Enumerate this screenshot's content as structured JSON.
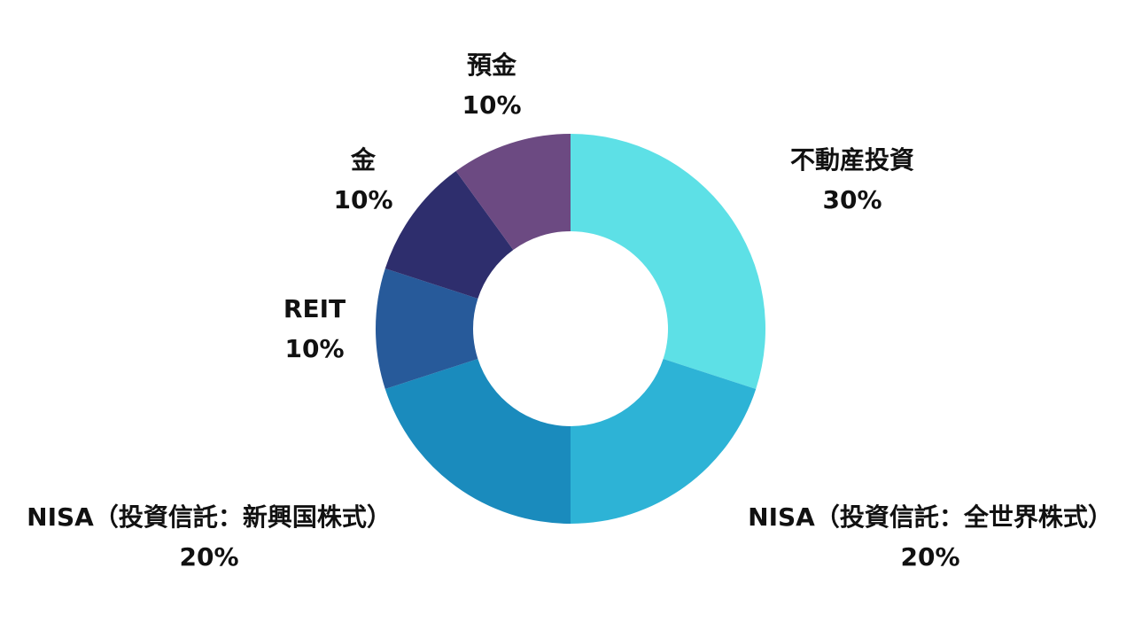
{
  "chart_data": {
    "type": "pie",
    "variant": "donut",
    "title": "",
    "legend": "none",
    "slices": [
      {
        "label": "不動産投資",
        "value": 30,
        "value_label": "30%",
        "color": "#5de0e6"
      },
      {
        "label": "NISA（投資信託：全世界株式）",
        "value": 20,
        "value_label": "20%",
        "color": "#2db3d6"
      },
      {
        "label": "NISA（投資信託：新興国株式）",
        "value": 20,
        "value_label": "20%",
        "color": "#1a8bbd"
      },
      {
        "label": "REIT",
        "value": 10,
        "value_label": "10%",
        "color": "#275a9a"
      },
      {
        "label": "金",
        "value": 10,
        "value_label": "10%",
        "color": "#2e2e6d"
      },
      {
        "label": "預金",
        "value": 10,
        "value_label": "10%",
        "color": "#6c4a82"
      }
    ]
  }
}
